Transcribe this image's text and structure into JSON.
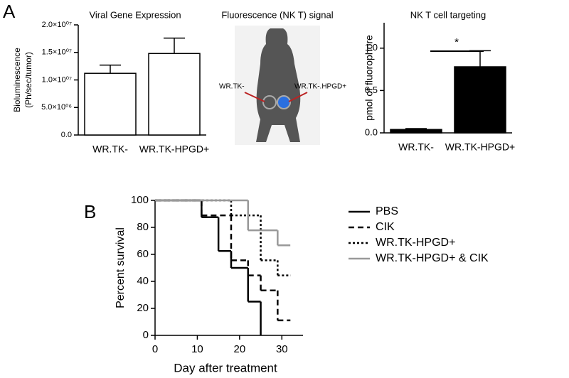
{
  "panel_labels": [
    "A",
    "B"
  ],
  "chart_data": [
    {
      "type": "bar",
      "title": "Viral Gene Expression",
      "ylabel": [
        "Bioluminescence",
        "(Ph/sec/tumor)"
      ],
      "categories": [
        "WR.TK-",
        "WR.TK-HPGD+"
      ],
      "values": [
        11200000,
        14800000
      ],
      "errors": [
        1500000,
        2800000
      ],
      "color": "#ffffff",
      "ylim": [
        0,
        20000000
      ],
      "yticks": [
        {
          "value": 0,
          "label": "0.0"
        },
        {
          "value": 5000000,
          "label": "5.0×10⁰⁶"
        },
        {
          "value": 10000000,
          "label": "1.0×10⁰⁷"
        },
        {
          "value": 15000000,
          "label": "1.5×10⁰⁷"
        },
        {
          "value": 20000000,
          "label": "2.0×10⁰⁷"
        }
      ]
    },
    {
      "type": "image",
      "title": "Fluorescence (NK T) signal",
      "annotations": [
        "WR.TK-",
        "WR.TK-.HPGD+"
      ]
    },
    {
      "type": "bar",
      "title": "NK T cell targeting",
      "ylabel": [
        "pmol of fluorophore"
      ],
      "categories": [
        "WR.TK-",
        "WR.TK-HPGD+"
      ],
      "values": [
        0.04,
        0.78
      ],
      "errors": [
        0.01,
        0.19
      ],
      "color": "#000000",
      "ylim": [
        0,
        1.3
      ],
      "yticks": [
        {
          "value": 0,
          "label": "0.0"
        },
        {
          "value": 0.5,
          "label": "0.5"
        },
        {
          "value": 1,
          "label": "1.0"
        }
      ],
      "significance": "*"
    },
    {
      "type": "step",
      "xlabel": "Day after treatment",
      "ylabel": [
        "Percent survival"
      ],
      "xlim": [
        0,
        35
      ],
      "xticks": [
        0,
        10,
        20,
        30
      ],
      "ylim": [
        0,
        100
      ],
      "yticks": [
        0,
        20,
        40,
        60,
        80,
        100
      ],
      "series": [
        {
          "name": "PBS",
          "color": "#000000",
          "linestyle": "solid",
          "x": [
            0,
            11,
            15,
            18,
            22,
            25
          ],
          "values": [
            100,
            87.5,
            62.5,
            50,
            25,
            0
          ]
        },
        {
          "name": "CIK",
          "color": "#000000",
          "linestyle": "dashed",
          "x": [
            0,
            11,
            18,
            22,
            25,
            29,
            32
          ],
          "values": [
            100,
            88.9,
            55.6,
            44.4,
            33.3,
            11.1,
            11.1
          ]
        },
        {
          "name": "WR.TK-HPGD+",
          "color": "#000000",
          "linestyle": "dotted",
          "x": [
            0,
            18,
            25,
            29,
            32
          ],
          "values": [
            100,
            88.9,
            55.6,
            44.4,
            44.4
          ]
        },
        {
          "name": "WR.TK-HPGD+ & CIK",
          "color": "#999999",
          "linestyle": "solid",
          "x": [
            0,
            22,
            29,
            32
          ],
          "values": [
            100,
            77.8,
            66.7,
            66.7
          ]
        }
      ]
    }
  ]
}
